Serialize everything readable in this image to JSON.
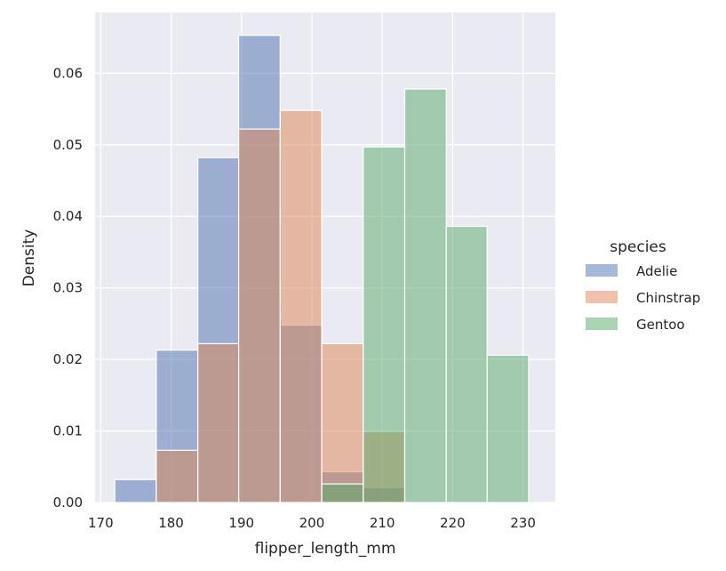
{
  "chart_data": {
    "type": "bar",
    "subtype": "overlapping-histogram",
    "xlabel": "flipper_length_mm",
    "ylabel": "Density",
    "xlim": [
      169.2,
      234.6
    ],
    "ylim": [
      0,
      0.0685
    ],
    "xticks": [
      170,
      180,
      190,
      200,
      210,
      220,
      230
    ],
    "xtick_labels": [
      "170",
      "180",
      "190",
      "200",
      "210",
      "220",
      "230"
    ],
    "yticks": [
      0.0,
      0.01,
      0.02,
      0.03,
      0.04,
      0.05,
      0.06
    ],
    "ytick_labels": [
      "0.00",
      "0.01",
      "0.02",
      "0.03",
      "0.04",
      "0.05",
      "0.06"
    ],
    "grid": true,
    "bin_edges": [
      172.0,
      177.9,
      183.8,
      189.6,
      195.5,
      201.4,
      207.3,
      213.2,
      219.1,
      224.9,
      230.8
    ],
    "legend": {
      "title": "species",
      "placement": "center-right"
    },
    "series": [
      {
        "name": "Adelie",
        "color": "#4c72b0",
        "values": [
          0.0032,
          0.0213,
          0.0482,
          0.0653,
          0.0248,
          0.0043,
          0.0021,
          0,
          0,
          0
        ]
      },
      {
        "name": "Chinstrap",
        "color": "#dd8452",
        "values": [
          0,
          0.0073,
          0.0222,
          0.0522,
          0.0548,
          0.0222,
          0.0099,
          0,
          0,
          0
        ]
      },
      {
        "name": "Gentoo",
        "color": "#55a868",
        "values": [
          0,
          0,
          0,
          0,
          0,
          0.0026,
          0.0497,
          0.0578,
          0.0386,
          0.0206
        ]
      }
    ],
    "background": "#eaeaf2",
    "gridline_color": "#ffffff",
    "bar_opacity": 0.5
  }
}
